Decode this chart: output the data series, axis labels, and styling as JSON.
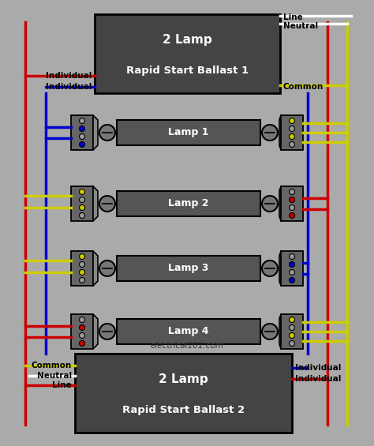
{
  "bg_color": "#aaaaaa",
  "wire_colors": {
    "red": "#cc0000",
    "blue": "#0000cc",
    "yellow": "#cccc00",
    "white": "#ffffff",
    "black": "#000000"
  },
  "ballast1": {
    "label1": "2 Lamp",
    "label2": "Rapid Start Ballast 1"
  },
  "ballast2": {
    "label1": "2 Lamp",
    "label2": "Rapid Start Ballast 2"
  },
  "lamps": [
    "Lamp 1",
    "Lamp 2",
    "Lamp 3",
    "Lamp 4"
  ],
  "website": "electrical101.com",
  "left_labels_b1": [
    "Individual",
    "Individual"
  ],
  "right_labels_b1": [
    "Line",
    "Neutral",
    "Common"
  ],
  "left_labels_b2": [
    "Common",
    "Neutral",
    "Line"
  ],
  "right_labels_b2": [
    "Individual",
    "Individual"
  ]
}
